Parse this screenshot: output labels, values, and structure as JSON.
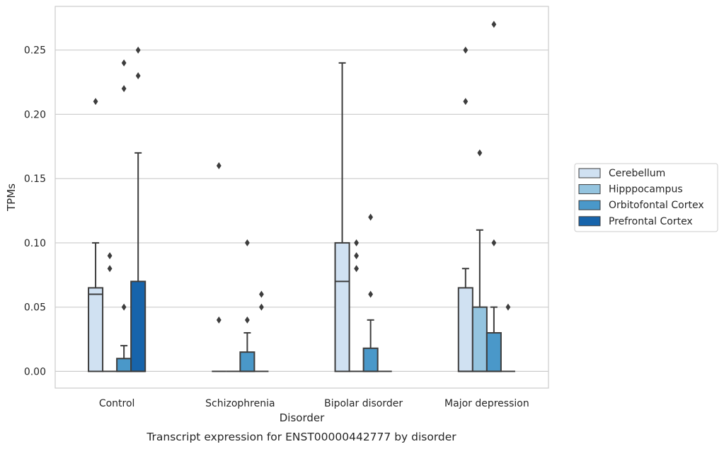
{
  "chart_data": {
    "type": "box",
    "title": "",
    "caption": "Transcript expression for ENST00000442777 by disorder",
    "xlabel": "Disorder",
    "ylabel": "TPMs",
    "ylim": [
      -0.013,
      0.284
    ],
    "yticks": [
      "0.00",
      "0.05",
      "0.10",
      "0.15",
      "0.20",
      "0.25"
    ],
    "ytick_values": [
      0.0,
      0.05,
      0.1,
      0.15,
      0.2,
      0.25
    ],
    "grid": "horizontal",
    "legend_placement": "right",
    "categories": [
      "Control",
      "Schizophrenia",
      "Bipolar disorder",
      "Major depression"
    ],
    "series": [
      {
        "name": "Cerebellum",
        "color": "#d0e1f2",
        "boxes": [
          {
            "q1": 0.0,
            "median": 0.06,
            "q3": 0.065,
            "whisker_low": 0.0,
            "whisker_high": 0.1,
            "outliers": [
              0.21
            ]
          },
          {
            "q1": 0.0,
            "median": 0.0,
            "q3": 0.0,
            "whisker_low": 0.0,
            "whisker_high": 0.0,
            "outliers": [
              0.16,
              0.04
            ]
          },
          {
            "q1": 0.0,
            "median": 0.07,
            "q3": 0.1,
            "whisker_low": 0.0,
            "whisker_high": 0.24,
            "outliers": []
          },
          {
            "q1": 0.0,
            "median": 0.0,
            "q3": 0.065,
            "whisker_low": 0.0,
            "whisker_high": 0.08,
            "outliers": [
              0.25,
              0.21
            ]
          }
        ]
      },
      {
        "name": "Hipppocampus",
        "color": "#94c4df",
        "boxes": [
          {
            "q1": 0.0,
            "median": 0.0,
            "q3": 0.0,
            "whisker_low": 0.0,
            "whisker_high": 0.0,
            "outliers": [
              0.09,
              0.08
            ]
          },
          {
            "q1": 0.0,
            "median": 0.0,
            "q3": 0.0,
            "whisker_low": 0.0,
            "whisker_high": 0.0,
            "outliers": []
          },
          {
            "q1": 0.0,
            "median": 0.0,
            "q3": 0.0,
            "whisker_low": 0.0,
            "whisker_high": 0.0,
            "outliers": [
              0.1,
              0.09,
              0.08
            ]
          },
          {
            "q1": 0.0,
            "median": 0.0,
            "q3": 0.05,
            "whisker_low": 0.0,
            "whisker_high": 0.11,
            "outliers": [
              0.17
            ]
          }
        ]
      },
      {
        "name": "Orbitofontal Cortex",
        "color": "#4a98c9",
        "boxes": [
          {
            "q1": 0.0,
            "median": 0.0,
            "q3": 0.01,
            "whisker_low": 0.0,
            "whisker_high": 0.02,
            "outliers": [
              0.24,
              0.22,
              0.05
            ]
          },
          {
            "q1": 0.0,
            "median": 0.0,
            "q3": 0.015,
            "whisker_low": 0.0,
            "whisker_high": 0.03,
            "outliers": [
              0.1,
              0.04
            ]
          },
          {
            "q1": 0.0,
            "median": 0.0,
            "q3": 0.018,
            "whisker_low": 0.0,
            "whisker_high": 0.04,
            "outliers": [
              0.12,
              0.06
            ]
          },
          {
            "q1": 0.0,
            "median": 0.0,
            "q3": 0.03,
            "whisker_low": 0.0,
            "whisker_high": 0.05,
            "outliers": [
              0.27,
              0.1
            ]
          }
        ]
      },
      {
        "name": "Prefrontal Cortex",
        "color": "#1764ab",
        "boxes": [
          {
            "q1": 0.0,
            "median": 0.0,
            "q3": 0.07,
            "whisker_low": 0.0,
            "whisker_high": 0.17,
            "outliers": [
              0.25,
              0.23
            ]
          },
          {
            "q1": 0.0,
            "median": 0.0,
            "q3": 0.0,
            "whisker_low": 0.0,
            "whisker_high": 0.0,
            "outliers": [
              0.06,
              0.05
            ]
          },
          {
            "q1": 0.0,
            "median": 0.0,
            "q3": 0.0,
            "whisker_low": 0.0,
            "whisker_high": 0.0,
            "outliers": []
          },
          {
            "q1": 0.0,
            "median": 0.0,
            "q3": 0.0,
            "whisker_low": 0.0,
            "whisker_high": 0.0,
            "outliers": [
              0.05
            ]
          }
        ]
      }
    ]
  }
}
